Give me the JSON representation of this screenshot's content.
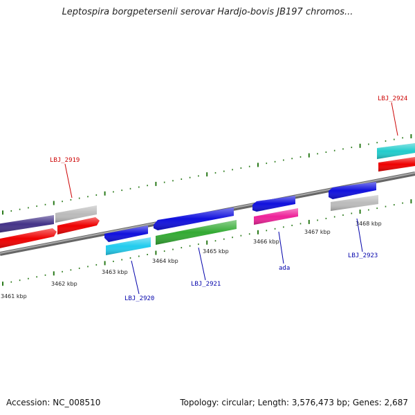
{
  "title": "Leptospira borgpetersenii serovar Hardjo-bovis JB197 chromos...",
  "footer": {
    "accession": "Accession: NC_008510",
    "topology": "Topology: circular; Length: 3,576,473 bp; Genes: 2,687"
  },
  "kbp_labels": [
    "3461 kbp",
    "3462 kbp",
    "3463 kbp",
    "3464 kbp",
    "3465 kbp",
    "3466 kbp",
    "3467 kbp",
    "3468 kbp"
  ],
  "gene_labels": [
    {
      "text": "LBJ_2919",
      "color": "#cc0000"
    },
    {
      "text": "LBJ_2920",
      "color": "#0000aa"
    },
    {
      "text": "LBJ_2921",
      "color": "#0000aa"
    },
    {
      "text": "ada",
      "color": "#0000aa"
    },
    {
      "text": "LBJ_2923",
      "color": "#0000aa"
    },
    {
      "text": "LBJ_2924",
      "color": "#cc0000"
    }
  ],
  "colors": {
    "backbone": "#888888",
    "ticks": "#2a7a1a",
    "blue": "#1010dd",
    "red": "#ee0000",
    "cyan": "#22ccee",
    "green": "#33aa33",
    "magenta": "#ee2299",
    "gray": "#bbbbbb",
    "purple": "#443388",
    "teal": "#22cccc"
  }
}
